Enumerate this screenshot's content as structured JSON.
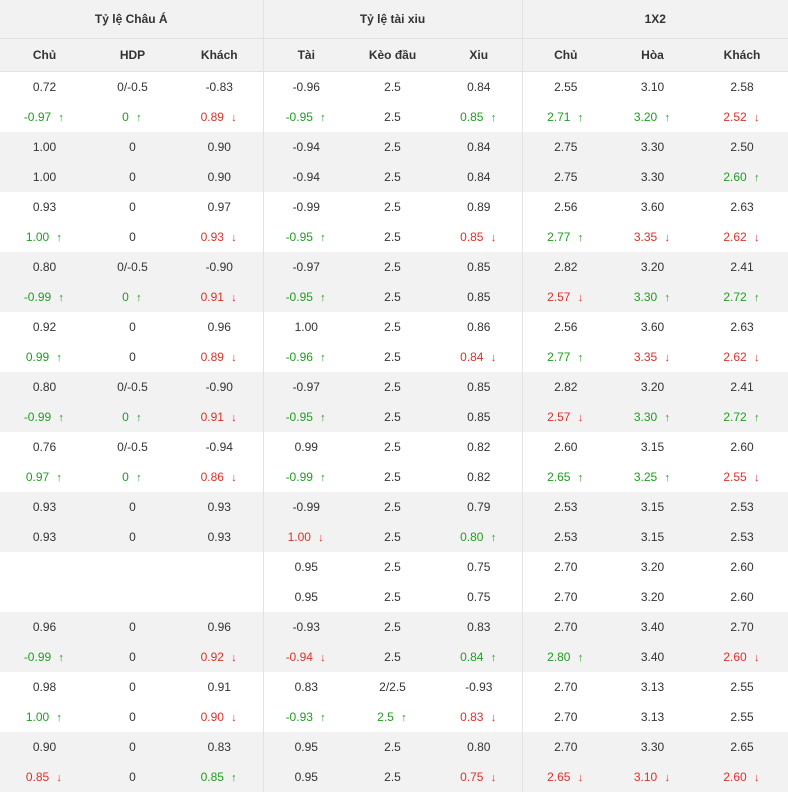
{
  "groups": [
    "Tỷ lệ Châu Á",
    "Tỷ lệ tài xiu",
    "1X2"
  ],
  "columns": [
    "Chủ",
    "HDP",
    "Khách",
    "Tài",
    "Kèo đầu",
    "Xiu",
    "Chủ",
    "Hòa",
    "Khách"
  ],
  "colors": {
    "up": "#1e9e1e",
    "down": "#e0302a",
    "shade": "#f2f2f2"
  },
  "rows": [
    {
      "shade": false,
      "cells": [
        {
          "v": "0.72"
        },
        {
          "v": "0/-0.5"
        },
        {
          "v": "-0.83"
        },
        {
          "v": "-0.96"
        },
        {
          "v": "2.5"
        },
        {
          "v": "0.84"
        },
        {
          "v": "2.55"
        },
        {
          "v": "3.10"
        },
        {
          "v": "2.58"
        }
      ]
    },
    {
      "shade": false,
      "cells": [
        {
          "v": "-0.97",
          "d": "up"
        },
        {
          "v": "0",
          "d": "up"
        },
        {
          "v": "0.89",
          "d": "down"
        },
        {
          "v": "-0.95",
          "d": "up"
        },
        {
          "v": "2.5"
        },
        {
          "v": "0.85",
          "d": "up"
        },
        {
          "v": "2.71",
          "d": "up"
        },
        {
          "v": "3.20",
          "d": "up"
        },
        {
          "v": "2.52",
          "d": "down"
        }
      ]
    },
    {
      "shade": true,
      "cells": [
        {
          "v": "1.00"
        },
        {
          "v": "0"
        },
        {
          "v": "0.90"
        },
        {
          "v": "-0.94"
        },
        {
          "v": "2.5"
        },
        {
          "v": "0.84"
        },
        {
          "v": "2.75"
        },
        {
          "v": "3.30"
        },
        {
          "v": "2.50"
        }
      ]
    },
    {
      "shade": true,
      "cells": [
        {
          "v": "1.00"
        },
        {
          "v": "0"
        },
        {
          "v": "0.90"
        },
        {
          "v": "-0.94"
        },
        {
          "v": "2.5"
        },
        {
          "v": "0.84"
        },
        {
          "v": "2.75"
        },
        {
          "v": "3.30"
        },
        {
          "v": "2.60",
          "d": "up"
        }
      ]
    },
    {
      "shade": false,
      "cells": [
        {
          "v": "0.93"
        },
        {
          "v": "0"
        },
        {
          "v": "0.97"
        },
        {
          "v": "-0.99"
        },
        {
          "v": "2.5"
        },
        {
          "v": "0.89"
        },
        {
          "v": "2.56"
        },
        {
          "v": "3.60"
        },
        {
          "v": "2.63"
        }
      ]
    },
    {
      "shade": false,
      "cells": [
        {
          "v": "1.00",
          "d": "up"
        },
        {
          "v": "0"
        },
        {
          "v": "0.93",
          "d": "down"
        },
        {
          "v": "-0.95",
          "d": "up"
        },
        {
          "v": "2.5"
        },
        {
          "v": "0.85",
          "d": "down"
        },
        {
          "v": "2.77",
          "d": "up"
        },
        {
          "v": "3.35",
          "d": "down"
        },
        {
          "v": "2.62",
          "d": "down"
        }
      ]
    },
    {
      "shade": true,
      "cells": [
        {
          "v": "0.80"
        },
        {
          "v": "0/-0.5"
        },
        {
          "v": "-0.90"
        },
        {
          "v": "-0.97"
        },
        {
          "v": "2.5"
        },
        {
          "v": "0.85"
        },
        {
          "v": "2.82"
        },
        {
          "v": "3.20"
        },
        {
          "v": "2.41"
        }
      ]
    },
    {
      "shade": true,
      "cells": [
        {
          "v": "-0.99",
          "d": "up"
        },
        {
          "v": "0",
          "d": "up"
        },
        {
          "v": "0.91",
          "d": "down"
        },
        {
          "v": "-0.95",
          "d": "up"
        },
        {
          "v": "2.5"
        },
        {
          "v": "0.85"
        },
        {
          "v": "2.57",
          "d": "down"
        },
        {
          "v": "3.30",
          "d": "up"
        },
        {
          "v": "2.72",
          "d": "up"
        }
      ]
    },
    {
      "shade": false,
      "cells": [
        {
          "v": "0.92"
        },
        {
          "v": "0"
        },
        {
          "v": "0.96"
        },
        {
          "v": "1.00"
        },
        {
          "v": "2.5"
        },
        {
          "v": "0.86"
        },
        {
          "v": "2.56"
        },
        {
          "v": "3.60"
        },
        {
          "v": "2.63"
        }
      ]
    },
    {
      "shade": false,
      "cells": [
        {
          "v": "0.99",
          "d": "up"
        },
        {
          "v": "0"
        },
        {
          "v": "0.89",
          "d": "down"
        },
        {
          "v": "-0.96",
          "d": "up"
        },
        {
          "v": "2.5"
        },
        {
          "v": "0.84",
          "d": "down"
        },
        {
          "v": "2.77",
          "d": "up"
        },
        {
          "v": "3.35",
          "d": "down"
        },
        {
          "v": "2.62",
          "d": "down"
        }
      ]
    },
    {
      "shade": true,
      "cells": [
        {
          "v": "0.80"
        },
        {
          "v": "0/-0.5"
        },
        {
          "v": "-0.90"
        },
        {
          "v": "-0.97"
        },
        {
          "v": "2.5"
        },
        {
          "v": "0.85"
        },
        {
          "v": "2.82"
        },
        {
          "v": "3.20"
        },
        {
          "v": "2.41"
        }
      ]
    },
    {
      "shade": true,
      "cells": [
        {
          "v": "-0.99",
          "d": "up"
        },
        {
          "v": "0",
          "d": "up"
        },
        {
          "v": "0.91",
          "d": "down"
        },
        {
          "v": "-0.95",
          "d": "up"
        },
        {
          "v": "2.5"
        },
        {
          "v": "0.85"
        },
        {
          "v": "2.57",
          "d": "down"
        },
        {
          "v": "3.30",
          "d": "up"
        },
        {
          "v": "2.72",
          "d": "up"
        }
      ]
    },
    {
      "shade": false,
      "cells": [
        {
          "v": "0.76"
        },
        {
          "v": "0/-0.5"
        },
        {
          "v": "-0.94"
        },
        {
          "v": "0.99"
        },
        {
          "v": "2.5"
        },
        {
          "v": "0.82"
        },
        {
          "v": "2.60"
        },
        {
          "v": "3.15"
        },
        {
          "v": "2.60"
        }
      ]
    },
    {
      "shade": false,
      "cells": [
        {
          "v": "0.97",
          "d": "up"
        },
        {
          "v": "0",
          "d": "up"
        },
        {
          "v": "0.86",
          "d": "down"
        },
        {
          "v": "-0.99",
          "d": "up"
        },
        {
          "v": "2.5"
        },
        {
          "v": "0.82"
        },
        {
          "v": "2.65",
          "d": "up"
        },
        {
          "v": "3.25",
          "d": "up"
        },
        {
          "v": "2.55",
          "d": "down"
        }
      ]
    },
    {
      "shade": true,
      "cells": [
        {
          "v": "0.93"
        },
        {
          "v": "0"
        },
        {
          "v": "0.93"
        },
        {
          "v": "-0.99"
        },
        {
          "v": "2.5"
        },
        {
          "v": "0.79"
        },
        {
          "v": "2.53"
        },
        {
          "v": "3.15"
        },
        {
          "v": "2.53"
        }
      ]
    },
    {
      "shade": true,
      "cells": [
        {
          "v": "0.93"
        },
        {
          "v": "0"
        },
        {
          "v": "0.93"
        },
        {
          "v": "1.00",
          "d": "down"
        },
        {
          "v": "2.5"
        },
        {
          "v": "0.80",
          "d": "up"
        },
        {
          "v": "2.53"
        },
        {
          "v": "3.15"
        },
        {
          "v": "2.53"
        }
      ]
    },
    {
      "shade": false,
      "cells": [
        {
          "v": ""
        },
        {
          "v": ""
        },
        {
          "v": ""
        },
        {
          "v": "0.95"
        },
        {
          "v": "2.5"
        },
        {
          "v": "0.75"
        },
        {
          "v": "2.70"
        },
        {
          "v": "3.20"
        },
        {
          "v": "2.60"
        }
      ]
    },
    {
      "shade": false,
      "cells": [
        {
          "v": ""
        },
        {
          "v": ""
        },
        {
          "v": ""
        },
        {
          "v": "0.95"
        },
        {
          "v": "2.5"
        },
        {
          "v": "0.75"
        },
        {
          "v": "2.70"
        },
        {
          "v": "3.20"
        },
        {
          "v": "2.60"
        }
      ]
    },
    {
      "shade": true,
      "cells": [
        {
          "v": "0.96"
        },
        {
          "v": "0"
        },
        {
          "v": "0.96"
        },
        {
          "v": "-0.93"
        },
        {
          "v": "2.5"
        },
        {
          "v": "0.83"
        },
        {
          "v": "2.70"
        },
        {
          "v": "3.40"
        },
        {
          "v": "2.70"
        }
      ]
    },
    {
      "shade": true,
      "cells": [
        {
          "v": "-0.99",
          "d": "up"
        },
        {
          "v": "0"
        },
        {
          "v": "0.92",
          "d": "down"
        },
        {
          "v": "-0.94",
          "d": "down"
        },
        {
          "v": "2.5"
        },
        {
          "v": "0.84",
          "d": "up"
        },
        {
          "v": "2.80",
          "d": "up"
        },
        {
          "v": "3.40"
        },
        {
          "v": "2.60",
          "d": "down"
        }
      ]
    },
    {
      "shade": false,
      "cells": [
        {
          "v": "0.98"
        },
        {
          "v": "0"
        },
        {
          "v": "0.91"
        },
        {
          "v": "0.83"
        },
        {
          "v": "2/2.5"
        },
        {
          "v": "-0.93"
        },
        {
          "v": "2.70"
        },
        {
          "v": "3.13"
        },
        {
          "v": "2.55"
        }
      ]
    },
    {
      "shade": false,
      "cells": [
        {
          "v": "1.00",
          "d": "up"
        },
        {
          "v": "0"
        },
        {
          "v": "0.90",
          "d": "down"
        },
        {
          "v": "-0.93",
          "d": "up"
        },
        {
          "v": "2.5",
          "d": "up"
        },
        {
          "v": "0.83",
          "d": "down"
        },
        {
          "v": "2.70"
        },
        {
          "v": "3.13"
        },
        {
          "v": "2.55"
        }
      ]
    },
    {
      "shade": true,
      "cells": [
        {
          "v": "0.90"
        },
        {
          "v": "0"
        },
        {
          "v": "0.83"
        },
        {
          "v": "0.95"
        },
        {
          "v": "2.5"
        },
        {
          "v": "0.80"
        },
        {
          "v": "2.70"
        },
        {
          "v": "3.30"
        },
        {
          "v": "2.65"
        }
      ]
    },
    {
      "shade": true,
      "cells": [
        {
          "v": "0.85",
          "d": "down"
        },
        {
          "v": "0"
        },
        {
          "v": "0.85",
          "d": "up"
        },
        {
          "v": "0.95"
        },
        {
          "v": "2.5"
        },
        {
          "v": "0.75",
          "d": "down"
        },
        {
          "v": "2.65",
          "d": "down"
        },
        {
          "v": "3.10",
          "d": "down"
        },
        {
          "v": "2.60",
          "d": "down"
        }
      ]
    }
  ]
}
